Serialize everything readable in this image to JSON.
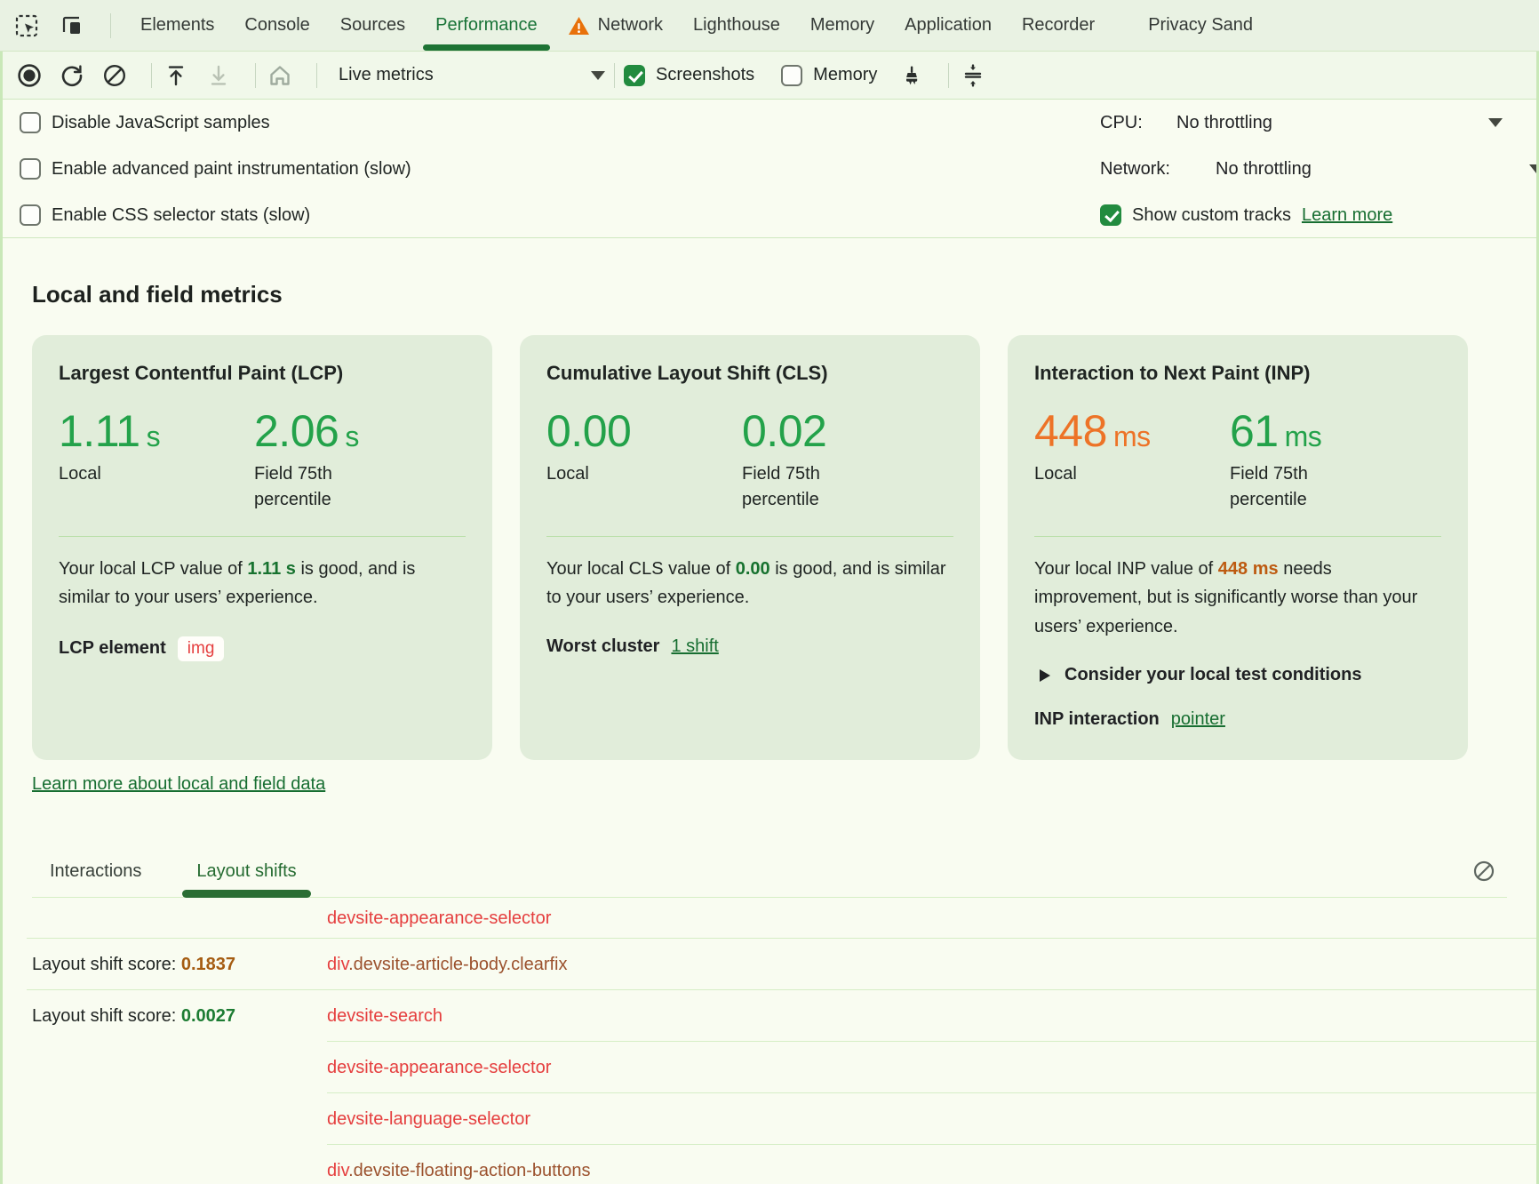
{
  "palette": {
    "accent_green": "#187337",
    "good_green": "#23a24a",
    "needs_improvement_orange": "#ed7327",
    "inline_good_green": "#17722f",
    "inline_ni_orange": "#bd5a10",
    "link_green": "#176e31",
    "element_link_red": "#e53e3e",
    "element_link_brown": "#9b512d",
    "score_ni": "#a55c12",
    "score_good": "#1d7c33",
    "card_bg": "#e1edda",
    "tabbar_bg": "#e9f2e3",
    "content_bg": "#f9fcf1",
    "warning_orange": "#e8710a",
    "checkbox_green": "#228b3f"
  },
  "tabbar": {
    "icons": [
      "inspect-icon",
      "device-toolbar-icon"
    ],
    "tabs": [
      {
        "label": "Elements"
      },
      {
        "label": "Console"
      },
      {
        "label": "Sources"
      },
      {
        "label": "Performance",
        "active": true
      },
      {
        "label": "Network",
        "warning": true
      },
      {
        "label": "Lighthouse"
      },
      {
        "label": "Memory"
      },
      {
        "label": "Application"
      },
      {
        "label": "Recorder"
      },
      {
        "label": "Privacy Sand",
        "gap": true
      }
    ]
  },
  "toolbar": {
    "icons": [
      "record-icon",
      "reload-icon",
      "clear-icon",
      "load-profile-icon",
      "save-profile-icon",
      "home-icon",
      "clear-history-brush-icon",
      "collapse-icon"
    ],
    "dropdown_value": "Live metrics",
    "screenshots_label": "Screenshots",
    "screenshots_checked": true,
    "memory_label": "Memory",
    "memory_checked": false
  },
  "settings": {
    "checkboxes": [
      {
        "label": "Disable JavaScript samples",
        "checked": false
      },
      {
        "label": "Enable advanced paint instrumentation (slow)",
        "checked": false
      },
      {
        "label": "Enable CSS selector stats (slow)",
        "checked": false
      }
    ],
    "cpu_label": "CPU:",
    "cpu_value": "No throttling",
    "network_label": "Network:",
    "network_value": "No throttling",
    "custom_tracks_label": "Show custom tracks",
    "custom_tracks_checked": true,
    "learn_more_label": "Learn more"
  },
  "metrics": {
    "heading": "Local and field metrics",
    "learn_more": "Learn more about local and field data",
    "cards": [
      {
        "id": "lcp",
        "title": "Largest Contentful Paint (LCP)",
        "local": {
          "value": "1.11",
          "unit": "s",
          "rating": "good",
          "label": "Local"
        },
        "field": {
          "value": "2.06",
          "unit": "s",
          "rating": "good",
          "label": "Field 75th percentile"
        },
        "desc": {
          "prefix": "Your local LCP value of ",
          "value": "1.11 s",
          "rating": "good",
          "suffix": " is good, and is similar to your users’ experience."
        },
        "extras": [
          {
            "type": "pill",
            "label": "LCP element",
            "value": "img"
          }
        ]
      },
      {
        "id": "cls",
        "title": "Cumulative Layout Shift (CLS)",
        "local": {
          "value": "0.00",
          "unit": "",
          "rating": "good",
          "label": "Local"
        },
        "field": {
          "value": "0.02",
          "unit": "",
          "rating": "good",
          "label": "Field 75th percentile"
        },
        "desc": {
          "prefix": "Your local CLS value of ",
          "value": "0.00",
          "rating": "good",
          "suffix": " is good, and is similar to your users’ experience."
        },
        "extras": [
          {
            "type": "link",
            "label": "Worst cluster",
            "value": "1 shift"
          }
        ]
      },
      {
        "id": "inp",
        "title": "Interaction to Next Paint (INP)",
        "local": {
          "value": "448",
          "unit": "ms",
          "rating": "ni",
          "label": "Local"
        },
        "field": {
          "value": "61",
          "unit": "ms",
          "rating": "good",
          "label": "Field 75th percentile"
        },
        "desc": {
          "prefix": "Your local INP value of ",
          "value": "448 ms",
          "rating": "ni",
          "suffix": " needs improvement, but is significantly worse than your users’ experience."
        },
        "extras": [
          {
            "type": "disclosure",
            "label": "Consider your local test conditions"
          },
          {
            "type": "link",
            "label": "INP interaction",
            "value": "pointer"
          }
        ]
      }
    ]
  },
  "log": {
    "tabs": [
      {
        "label": "Interactions",
        "active": false
      },
      {
        "label": "Layout shifts",
        "active": true
      }
    ],
    "clear_icon": "block-icon",
    "rows": [
      {
        "score_label": "",
        "score_value": "",
        "score_rating": "",
        "element": [
          {
            "t": "devsite-appearance-selector",
            "c": "red"
          }
        ],
        "divider": "full"
      },
      {
        "score_label": "Layout shift score: ",
        "score_value": "0.1837",
        "score_rating": "ni",
        "element": [
          {
            "t": "div",
            "c": "red"
          },
          {
            "t": ".devsite-article-body.clearfix",
            "c": "brown"
          }
        ],
        "divider": "full"
      },
      {
        "score_label": "Layout shift score: ",
        "score_value": "0.0027",
        "score_rating": "good",
        "element": [
          {
            "t": "devsite-search",
            "c": "red"
          }
        ],
        "divider": "indent"
      },
      {
        "score_label": "",
        "score_value": "",
        "score_rating": "",
        "element": [
          {
            "t": "devsite-appearance-selector",
            "c": "red"
          }
        ],
        "divider": "indent"
      },
      {
        "score_label": "",
        "score_value": "",
        "score_rating": "",
        "element": [
          {
            "t": "devsite-language-selector",
            "c": "red"
          }
        ],
        "divider": "indent"
      },
      {
        "score_label": "",
        "score_value": "",
        "score_rating": "",
        "element": [
          {
            "t": "div",
            "c": "red"
          },
          {
            "t": ".devsite-floating-action-buttons",
            "c": "brown"
          }
        ],
        "divider": "none"
      }
    ]
  }
}
